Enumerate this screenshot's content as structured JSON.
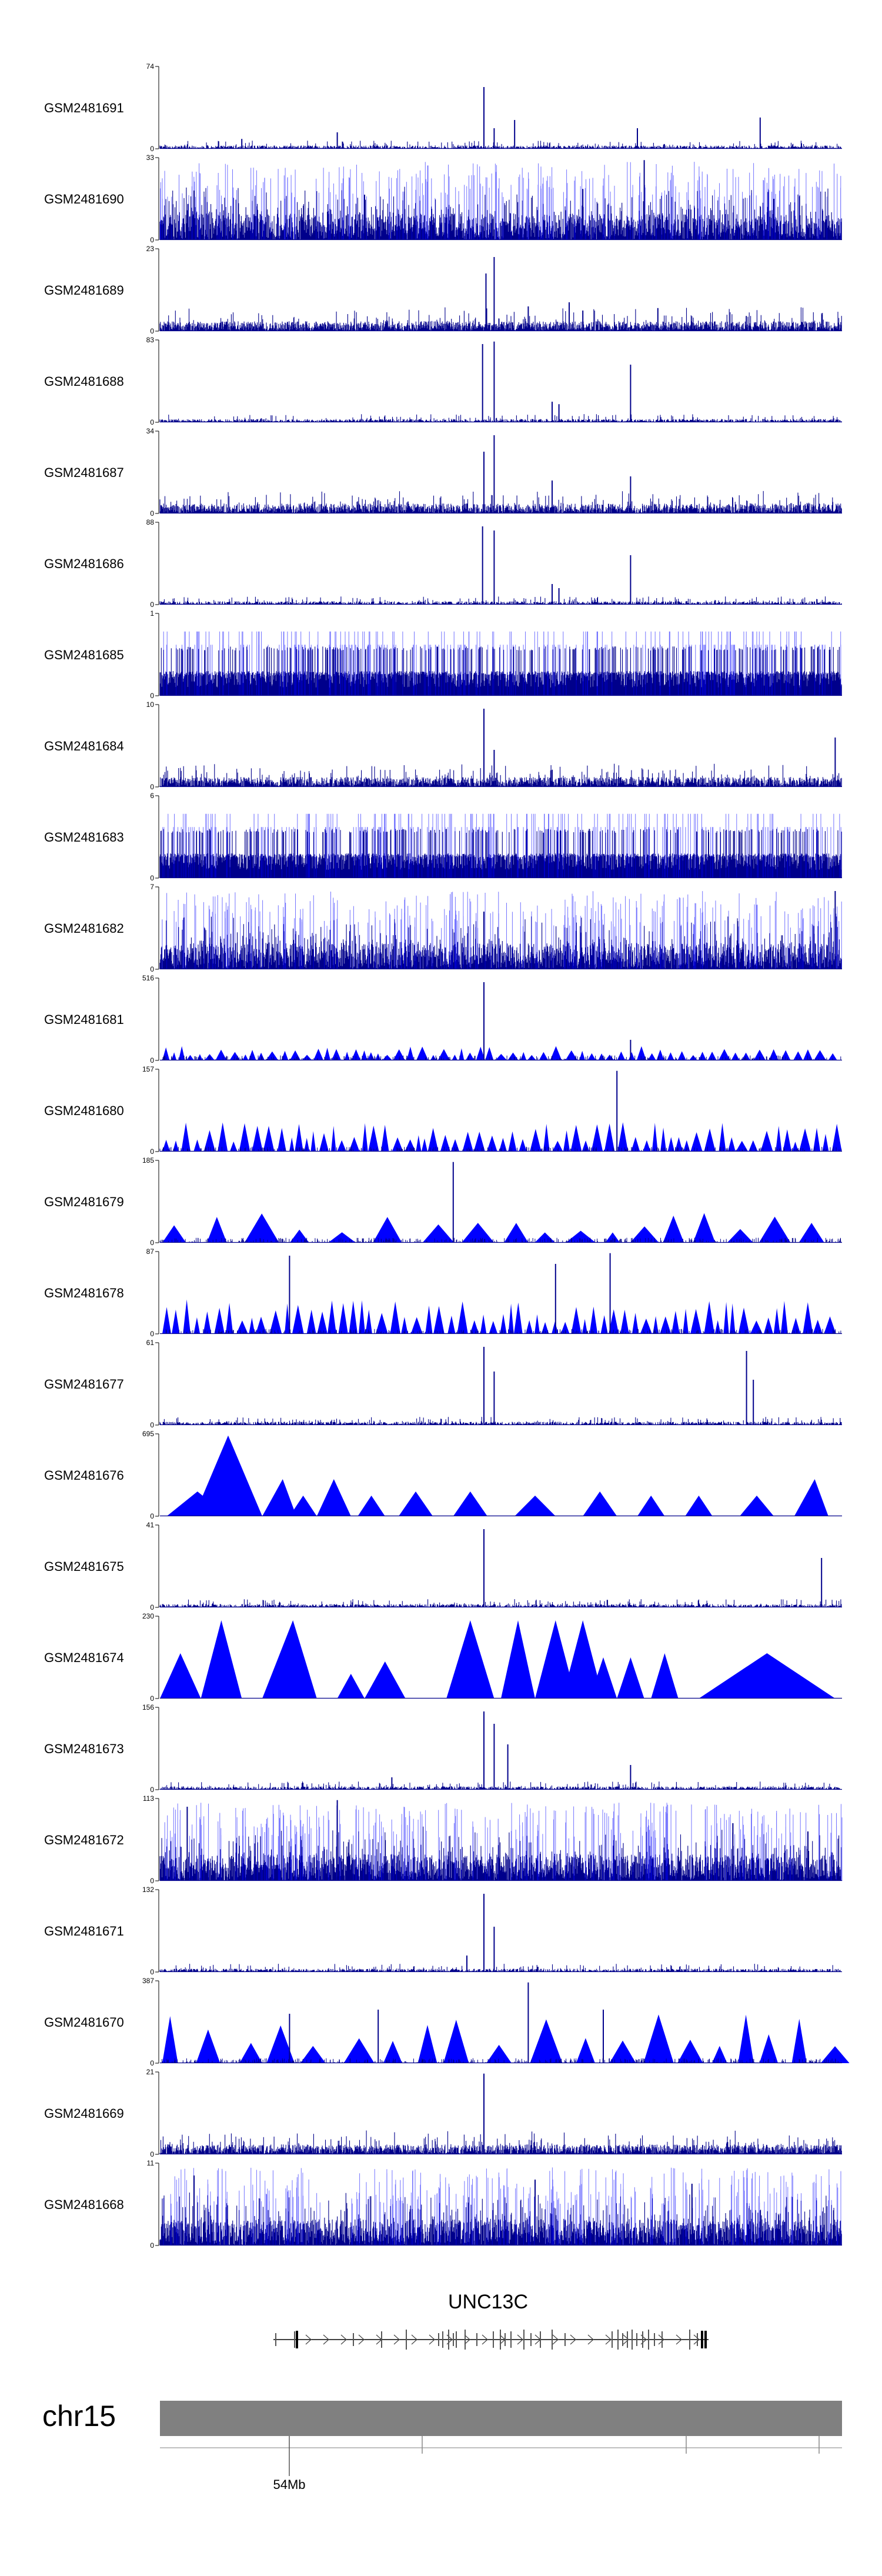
{
  "chart_data": {
    "type": "genome-browser-coverage",
    "chromosome": "chr15",
    "gene": "UNC13C",
    "x_axis": {
      "tick_labels": [
        "54Mb"
      ],
      "unlabeled_ticks": 4
    },
    "colors": {
      "track": "#0000ff",
      "track_dense": "#00008b",
      "ideogram": "#808080",
      "gene_model": "#000000"
    },
    "tracks": [
      {
        "name": "GSM2481691",
        "ymax": "74",
        "ymin": "0",
        "pattern": "sparse",
        "peaks": [
          [
            0.475,
            0.75
          ],
          [
            0.49,
            0.25
          ],
          [
            0.52,
            0.35
          ],
          [
            0.26,
            0.2
          ],
          [
            0.7,
            0.25
          ],
          [
            0.88,
            0.38
          ],
          [
            0.12,
            0.12
          ]
        ]
      },
      {
        "name": "GSM2481690",
        "ymax": "33",
        "ymin": "0",
        "pattern": "dense",
        "peaks": [
          [
            0.71,
            0.97
          ],
          [
            0.05,
            0.6
          ],
          [
            0.3,
            0.55
          ],
          [
            0.62,
            0.62
          ],
          [
            0.9,
            0.5
          ]
        ]
      },
      {
        "name": "GSM2481689",
        "ymax": "23",
        "ymin": "0",
        "pattern": "medium",
        "peaks": [
          [
            0.478,
            0.7
          ],
          [
            0.49,
            0.9
          ],
          [
            0.54,
            0.3
          ],
          [
            0.6,
            0.35
          ],
          [
            0.62,
            0.25
          ],
          [
            0.73,
            0.28
          ]
        ]
      },
      {
        "name": "GSM2481688",
        "ymax": "83",
        "ymin": "0",
        "pattern": "sparse",
        "peaks": [
          [
            0.473,
            0.95
          ],
          [
            0.49,
            0.98
          ],
          [
            0.575,
            0.25
          ],
          [
            0.585,
            0.22
          ],
          [
            0.69,
            0.7
          ]
        ]
      },
      {
        "name": "GSM2481687",
        "ymax": "34",
        "ymin": "0",
        "pattern": "medium",
        "peaks": [
          [
            0.475,
            0.75
          ],
          [
            0.49,
            0.95
          ],
          [
            0.575,
            0.4
          ],
          [
            0.69,
            0.45
          ],
          [
            0.45,
            0.12
          ]
        ]
      },
      {
        "name": "GSM2481686",
        "ymax": "88",
        "ymin": "0",
        "pattern": "sparse",
        "peaks": [
          [
            0.473,
            0.95
          ],
          [
            0.49,
            0.9
          ],
          [
            0.575,
            0.25
          ],
          [
            0.585,
            0.2
          ],
          [
            0.69,
            0.6
          ]
        ]
      },
      {
        "name": "GSM2481685",
        "ymax": "1",
        "ymin": "0",
        "pattern": "binary",
        "peaks": []
      },
      {
        "name": "GSM2481684",
        "ymax": "10",
        "ymin": "0",
        "pattern": "medium",
        "peaks": [
          [
            0.475,
            0.95
          ],
          [
            0.49,
            0.45
          ],
          [
            0.99,
            0.6
          ]
        ]
      },
      {
        "name": "GSM2481683",
        "ymax": "6",
        "ymin": "0",
        "pattern": "binary",
        "peaks": []
      },
      {
        "name": "GSM2481682",
        "ymax": "7",
        "ymin": "0",
        "pattern": "dense",
        "peaks": [
          [
            0.475,
            0.7
          ],
          [
            0.99,
            0.95
          ]
        ]
      },
      {
        "name": "GSM2481681",
        "ymax": "516",
        "ymin": "0",
        "pattern": "tri",
        "triScale": 0.15,
        "peaks": [
          [
            0.475,
            0.95
          ],
          [
            0.69,
            0.25
          ]
        ]
      },
      {
        "name": "GSM2481680",
        "ymax": "157",
        "ymin": "0",
        "pattern": "tri",
        "triScale": 0.3,
        "peaks": [
          [
            0.67,
            0.98
          ]
        ]
      },
      {
        "name": "GSM2481679",
        "ymax": "185",
        "ymin": "0",
        "pattern": "tri2",
        "triScale": 0.3,
        "peaks": [
          [
            0.43,
            0.98
          ]
        ]
      },
      {
        "name": "GSM2481678",
        "ymax": "87",
        "ymin": "0",
        "pattern": "tri",
        "triScale": 0.35,
        "peaks": [
          [
            0.19,
            0.95
          ],
          [
            0.66,
            0.98
          ],
          [
            0.58,
            0.85
          ]
        ]
      },
      {
        "name": "GSM2481677",
        "ymax": "61",
        "ymin": "0",
        "pattern": "sparse",
        "peaks": [
          [
            0.475,
            0.95
          ],
          [
            0.49,
            0.65
          ],
          [
            0.86,
            0.9
          ],
          [
            0.87,
            0.55
          ]
        ]
      },
      {
        "name": "GSM2481676",
        "ymax": "695",
        "ymin": "0",
        "pattern": "bigtri",
        "tris": [
          [
            0.01,
            0.055,
            0.1,
            0.3
          ],
          [
            0.05,
            0.1,
            0.15,
            0.98
          ],
          [
            0.15,
            0.18,
            0.2,
            0.45
          ],
          [
            0.19,
            0.21,
            0.23,
            0.25
          ],
          [
            0.23,
            0.255,
            0.28,
            0.45
          ],
          [
            0.29,
            0.31,
            0.33,
            0.25
          ],
          [
            0.35,
            0.375,
            0.4,
            0.3
          ],
          [
            0.43,
            0.455,
            0.48,
            0.3
          ],
          [
            0.52,
            0.55,
            0.58,
            0.25
          ],
          [
            0.62,
            0.645,
            0.67,
            0.3
          ],
          [
            0.7,
            0.72,
            0.74,
            0.25
          ],
          [
            0.77,
            0.79,
            0.81,
            0.25
          ],
          [
            0.85,
            0.875,
            0.9,
            0.25
          ],
          [
            0.93,
            0.96,
            0.98,
            0.45
          ]
        ]
      },
      {
        "name": "GSM2481675",
        "ymax": "41",
        "ymin": "0",
        "pattern": "sparse",
        "peaks": [
          [
            0.475,
            0.95
          ],
          [
            0.97,
            0.6
          ]
        ]
      },
      {
        "name": "GSM2481674",
        "ymax": "230",
        "ymin": "0",
        "pattern": "bigtri",
        "tris": [
          [
            0.0,
            0.03,
            0.06,
            0.55
          ],
          [
            0.06,
            0.09,
            0.12,
            0.95
          ],
          [
            0.15,
            0.195,
            0.23,
            0.95
          ],
          [
            0.26,
            0.28,
            0.3,
            0.3
          ],
          [
            0.3,
            0.33,
            0.36,
            0.45
          ],
          [
            0.42,
            0.455,
            0.49,
            0.95
          ],
          [
            0.5,
            0.525,
            0.55,
            0.95
          ],
          [
            0.55,
            0.58,
            0.61,
            0.95
          ],
          [
            0.63,
            0.65,
            0.67,
            0.5
          ],
          [
            0.67,
            0.69,
            0.71,
            0.5
          ],
          [
            0.72,
            0.74,
            0.76,
            0.55
          ],
          [
            0.79,
            0.89,
            0.99,
            0.55
          ],
          [
            0.59,
            0.62,
            0.65,
            0.95
          ]
        ]
      },
      {
        "name": "GSM2481673",
        "ymax": "156",
        "ymin": "0",
        "pattern": "sparse",
        "peaks": [
          [
            0.475,
            0.95
          ],
          [
            0.49,
            0.8
          ],
          [
            0.51,
            0.55
          ],
          [
            0.69,
            0.3
          ],
          [
            0.34,
            0.15
          ]
        ]
      },
      {
        "name": "GSM2481672",
        "ymax": "113",
        "ymin": "0",
        "pattern": "dense",
        "peaks": [
          [
            0.26,
            0.98
          ],
          [
            0.84,
            0.7
          ],
          [
            0.95,
            0.6
          ],
          [
            0.04,
            0.9
          ]
        ]
      },
      {
        "name": "GSM2481671",
        "ymax": "132",
        "ymin": "0",
        "pattern": "sparse",
        "peaks": [
          [
            0.475,
            0.95
          ],
          [
            0.49,
            0.55
          ],
          [
            0.45,
            0.2
          ]
        ]
      },
      {
        "name": "GSM2481670",
        "ymax": "387",
        "ymin": "0",
        "pattern": "tri2",
        "triScale": 0.5,
        "peaks": [
          [
            0.54,
            0.98
          ],
          [
            0.65,
            0.65
          ],
          [
            0.32,
            0.65
          ],
          [
            0.19,
            0.6
          ]
        ]
      },
      {
        "name": "GSM2481669",
        "ymax": "21",
        "ymin": "0",
        "pattern": "medium",
        "peaks": [
          [
            0.475,
            0.98
          ]
        ]
      },
      {
        "name": "GSM2481668",
        "ymax": "11",
        "ymin": "0",
        "pattern": "dense",
        "peaks": [
          [
            0.05,
            0.85
          ],
          [
            0.55,
            0.8
          ],
          [
            0.78,
            0.75
          ]
        ]
      }
    ]
  }
}
